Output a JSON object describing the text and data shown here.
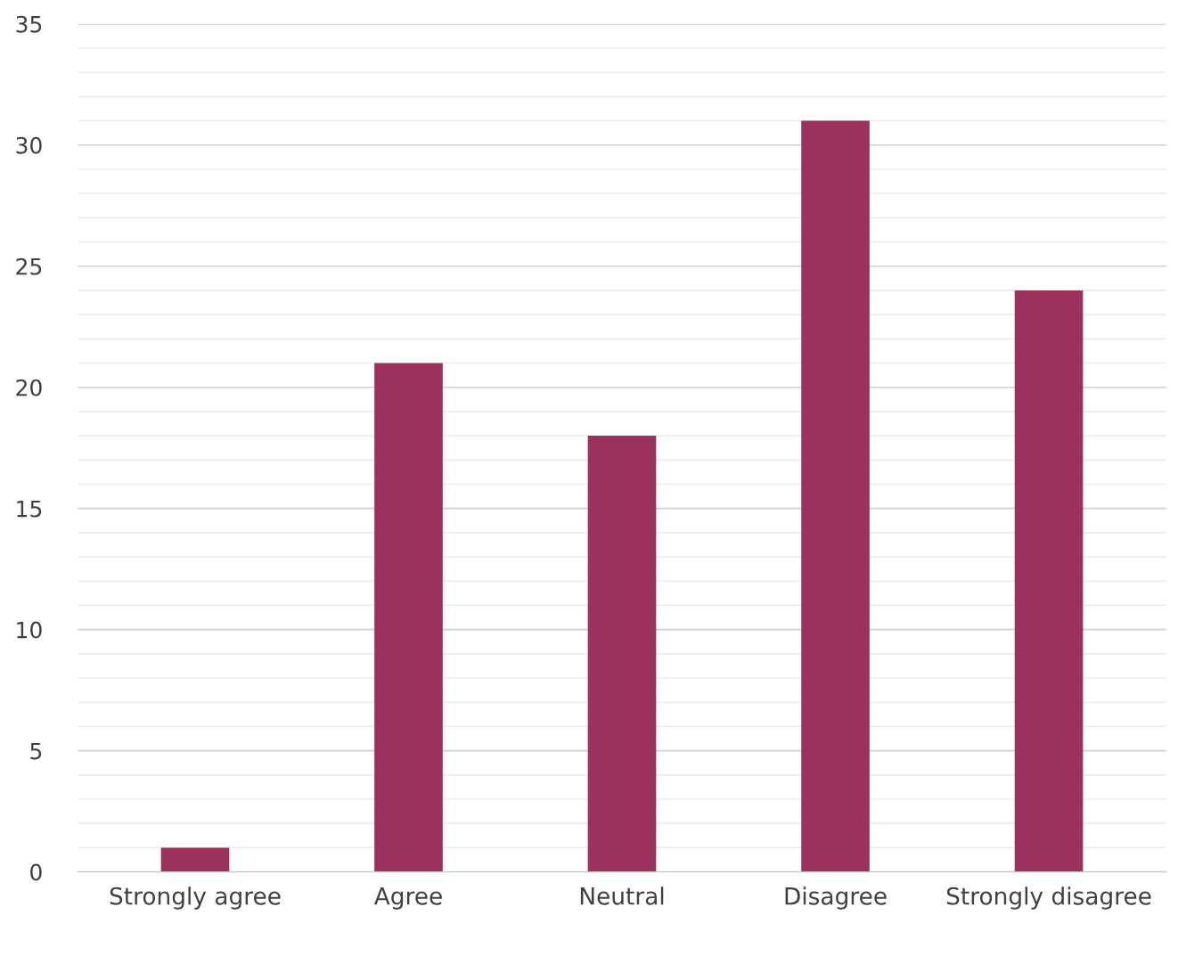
{
  "chart_data": {
    "type": "bar",
    "categories": [
      "Strongly agree",
      "Agree",
      "Neutral",
      "Disagree",
      "Strongly disagree"
    ],
    "values": [
      1,
      21,
      18,
      31,
      24
    ],
    "color": "#9b325d",
    "ylim": [
      0,
      35
    ],
    "yticks": [
      0,
      {
        "value": 1,
        "label": null
      },
      {
        "value": 2,
        "label": null
      },
      {
        "value": 3,
        "label": null
      },
      {
        "value": 4,
        "label": null
      },
      5,
      {
        "value": 6,
        "label": null
      },
      {
        "value": 7,
        "label": null
      },
      {
        "value": 8,
        "label": null
      },
      {
        "value": 9,
        "label": null
      },
      10,
      {
        "value": 11,
        "label": null
      },
      {
        "value": 12,
        "label": null
      },
      {
        "value": 13,
        "label": null
      },
      {
        "value": 14,
        "label": null
      },
      15,
      {
        "value": 16,
        "label": null
      },
      {
        "value": 17,
        "label": null
      },
      {
        "value": 18,
        "label": null
      },
      {
        "value": 19,
        "label": null
      },
      20,
      {
        "value": 21,
        "label": null
      },
      {
        "value": 22,
        "label": null
      },
      {
        "value": 23,
        "label": null
      },
      {
        "value": 24,
        "label": null
      },
      25,
      {
        "value": 26,
        "label": null
      },
      {
        "value": 27,
        "label": null
      },
      {
        "value": 28,
        "label": null
      },
      {
        "value": 29,
        "label": null
      },
      30,
      {
        "value": 31,
        "label": null
      },
      {
        "value": 32,
        "label": null
      },
      {
        "value": 33,
        "label": null
      },
      {
        "value": 34,
        "label": null
      },
      35
    ],
    "grid": "y"
  }
}
